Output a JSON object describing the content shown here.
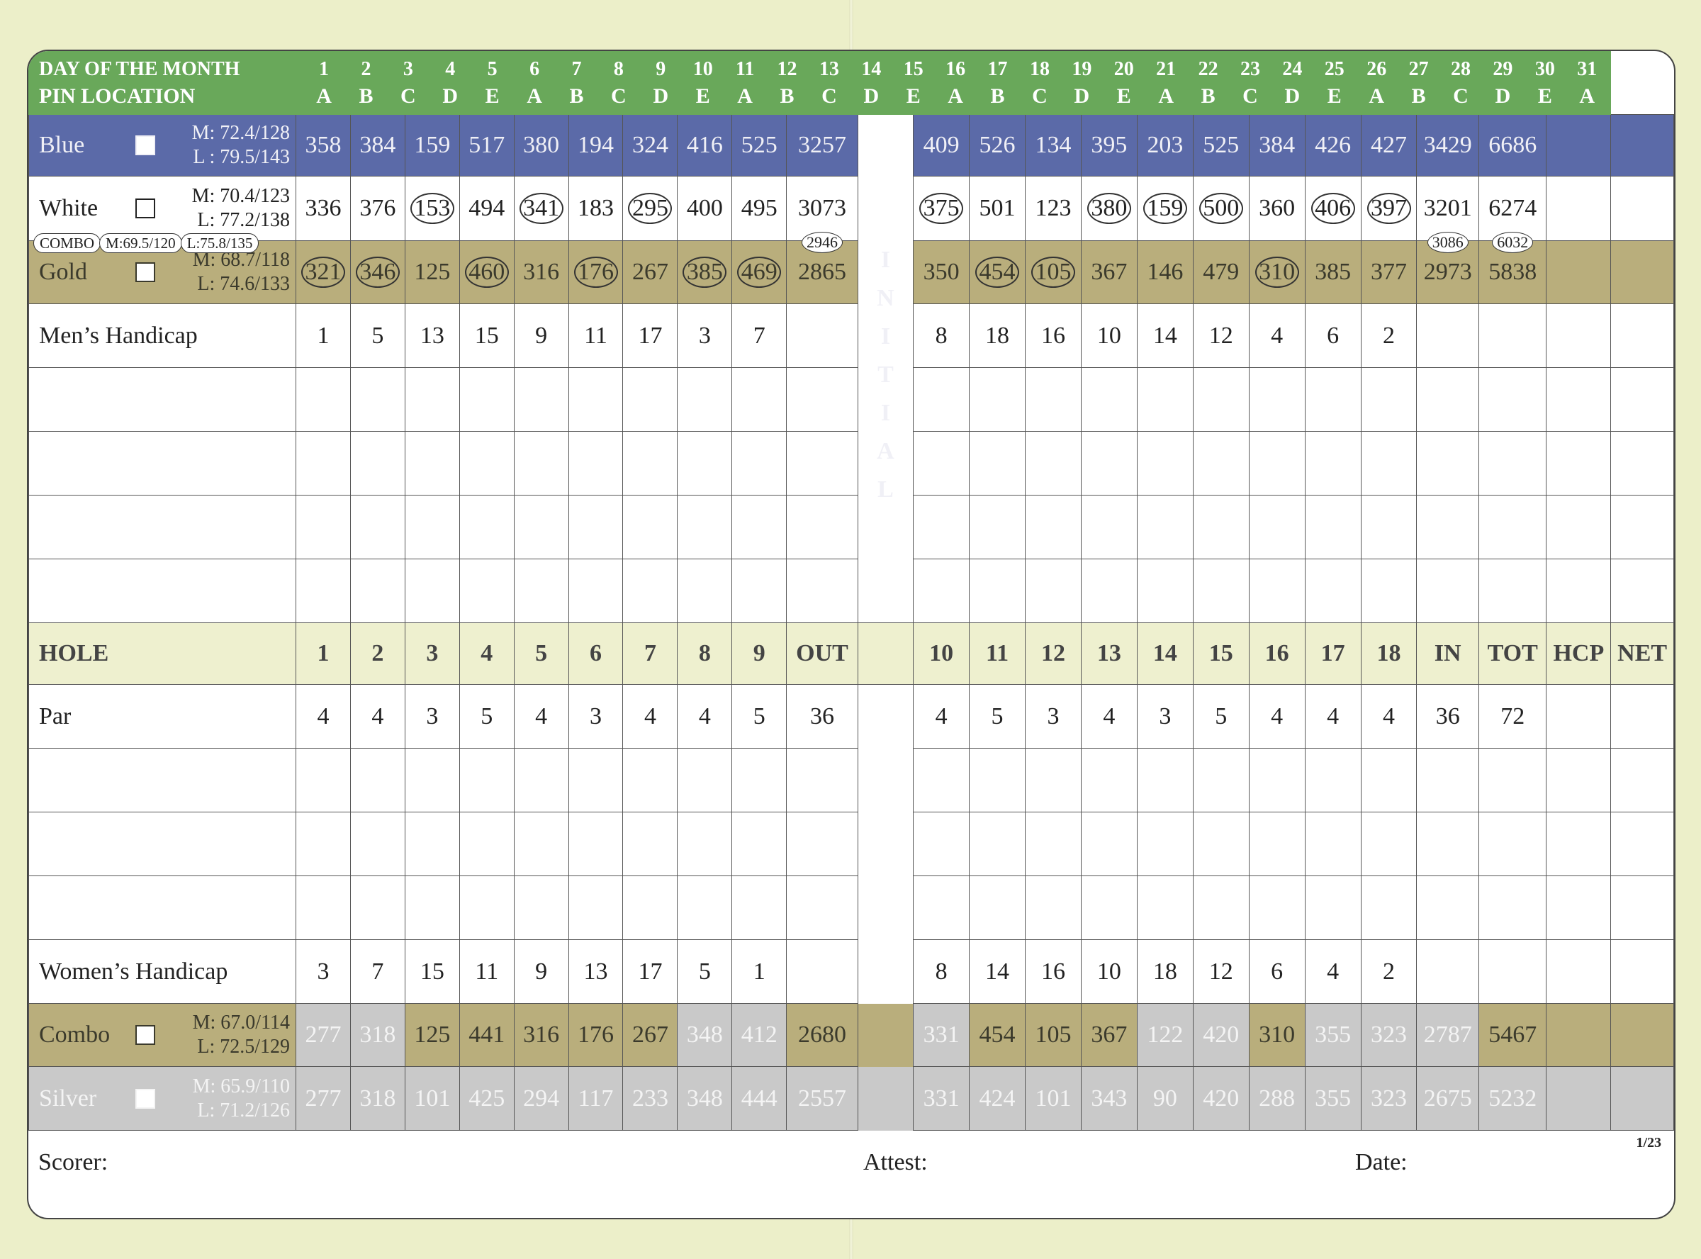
{
  "header": {
    "day_label": "DAY OF THE MONTH",
    "pin_label": "PIN LOCATION",
    "days": [
      "1",
      "2",
      "3",
      "4",
      "5",
      "6",
      "7",
      "8",
      "9",
      "10",
      "11",
      "12",
      "13",
      "14",
      "15",
      "16",
      "17",
      "18",
      "19",
      "20",
      "21",
      "22",
      "23",
      "24",
      "25",
      "26",
      "27",
      "28",
      "29",
      "30",
      "31"
    ],
    "pins": [
      "A",
      "B",
      "C",
      "D",
      "E",
      "A",
      "B",
      "C",
      "D",
      "E",
      "A",
      "B",
      "C",
      "D",
      "E",
      "A",
      "B",
      "C",
      "D",
      "E",
      "A",
      "B",
      "C",
      "D",
      "E",
      "A",
      "B",
      "C",
      "D",
      "E",
      "A"
    ]
  },
  "tees": {
    "blue": {
      "name": "Blue",
      "m": "M: 72.4/128",
      "l": "L : 79.5/143",
      "front": [
        "358",
        "384",
        "159",
        "517",
        "380",
        "194",
        "324",
        "416",
        "525"
      ],
      "out": "3257",
      "back": [
        "409",
        "526",
        "134",
        "395",
        "203",
        "525",
        "384",
        "426",
        "427"
      ],
      "in": "3429",
      "tot": "6686"
    },
    "white": {
      "name": "White",
      "m": "M: 70.4/123",
      "l": "L: 77.2/138",
      "front": [
        "336",
        "376",
        "153",
        "494",
        "341",
        "183",
        "295",
        "400",
        "495"
      ],
      "out": "3073",
      "back": [
        "375",
        "501",
        "123",
        "380",
        "159",
        "500",
        "360",
        "406",
        "397"
      ],
      "in": "3201",
      "tot": "6274",
      "out_combo": "2946",
      "in_combo": "3086",
      "tot_combo": "6032"
    },
    "combo_tag": {
      "label": "COMBO",
      "m": "M:69.5/120",
      "l": "L:75.8/135"
    },
    "gold": {
      "name": "Gold",
      "m": "M: 68.7/118",
      "l": "L: 74.6/133",
      "front": [
        "321",
        "346",
        "125",
        "460",
        "316",
        "176",
        "267",
        "385",
        "469"
      ],
      "out": "2865",
      "back": [
        "350",
        "454",
        "105",
        "367",
        "146",
        "479",
        "310",
        "385",
        "377"
      ],
      "in": "2973",
      "tot": "5838"
    }
  },
  "mens_handicap": {
    "label": "Men’s Handicap",
    "front": [
      "1",
      "5",
      "13",
      "15",
      "9",
      "11",
      "17",
      "3",
      "7"
    ],
    "back": [
      "8",
      "18",
      "16",
      "10",
      "14",
      "12",
      "4",
      "6",
      "2"
    ]
  },
  "initial_letters": [
    "I",
    "N",
    "I",
    "T",
    "I",
    "A",
    "L"
  ],
  "hole_row": {
    "label": "HOLE",
    "front": [
      "1",
      "2",
      "3",
      "4",
      "5",
      "6",
      "7",
      "8",
      "9"
    ],
    "out": "OUT",
    "back": [
      "10",
      "11",
      "12",
      "13",
      "14",
      "15",
      "16",
      "17",
      "18"
    ],
    "in": "IN",
    "tot": "TOT",
    "hcp": "HCP",
    "net": "NET"
  },
  "par": {
    "label": "Par",
    "front": [
      "4",
      "4",
      "3",
      "5",
      "4",
      "3",
      "4",
      "4",
      "5"
    ],
    "out": "36",
    "back": [
      "4",
      "5",
      "3",
      "4",
      "3",
      "5",
      "4",
      "4",
      "4"
    ],
    "in": "36",
    "tot": "72"
  },
  "womens_handicap": {
    "label": "Women’s Handicap",
    "front": [
      "3",
      "7",
      "15",
      "11",
      "9",
      "13",
      "17",
      "5",
      "1"
    ],
    "back": [
      "8",
      "14",
      "16",
      "10",
      "18",
      "12",
      "6",
      "4",
      "2"
    ]
  },
  "combo": {
    "name": "Combo",
    "m": "M: 67.0/114",
    "l": "L: 72.5/129",
    "front": [
      "277",
      "318",
      "125",
      "441",
      "316",
      "176",
      "267",
      "348",
      "412"
    ],
    "out": "2680",
    "back": [
      "331",
      "454",
      "105",
      "367",
      "122",
      "420",
      "310",
      "355",
      "323"
    ],
    "in": "2787",
    "tot": "5467"
  },
  "silver": {
    "name": "Silver",
    "m": "M: 65.9/110",
    "l": "L: 71.2/126",
    "front": [
      "277",
      "318",
      "101",
      "425",
      "294",
      "117",
      "233",
      "348",
      "444"
    ],
    "out": "2557",
    "back": [
      "331",
      "424",
      "101",
      "343",
      "90",
      "420",
      "288",
      "355",
      "323"
    ],
    "in": "2675",
    "tot": "5232"
  },
  "footer": {
    "scorer": "Scorer:",
    "attest": "Attest:",
    "date": "Date:",
    "page": "1/23"
  }
}
